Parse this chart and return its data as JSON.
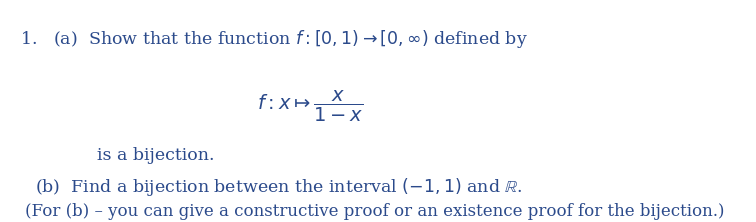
{
  "background_color": "#ffffff",
  "text_color": "#2b4a8b",
  "fig_width": 7.56,
  "fig_height": 2.22,
  "dpi": 100,
  "line1": "1.   (a)  Show that the function $f : [0, 1) \\rightarrow [0, \\infty)$ defined by",
  "line2": "$f : x \\mapsto \\dfrac{x}{1 - x}$",
  "line3": "is a bijection.",
  "line4": "(b)  Find a bijection between the interval $(-1, 1)$ and $\\mathbb{R}$.",
  "line5": "(For (b) – you can give a constructive proof or an existence proof for the bijection.)",
  "font_size_main": 12.5,
  "font_size_formula": 14,
  "font_size_hint": 12
}
